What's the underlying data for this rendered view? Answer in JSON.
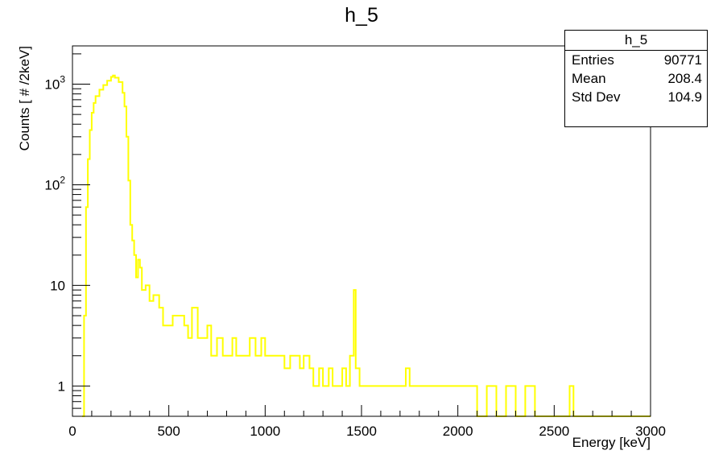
{
  "chart_data": {
    "type": "histogram",
    "title": "h_5",
    "xlabel": "Energy [keV]",
    "ylabel": "Counts [ # /2keV]",
    "xlim": [
      0,
      3000
    ],
    "ylim": [
      0.5,
      2400
    ],
    "y_scale": "log",
    "grid": false,
    "line_color": "#ffff00",
    "x_ticks": [
      {
        "value": 0,
        "label": "0"
      },
      {
        "value": 500,
        "label": "500"
      },
      {
        "value": 1000,
        "label": "1000"
      },
      {
        "value": 1500,
        "label": "1500"
      },
      {
        "value": 2000,
        "label": "2000"
      },
      {
        "value": 2500,
        "label": "2500"
      },
      {
        "value": 3000,
        "label": "3000"
      }
    ],
    "y_ticks": [
      {
        "value": 1,
        "label": "1"
      },
      {
        "value": 10,
        "label": "10"
      },
      {
        "value": 100,
        "label": "10^2"
      },
      {
        "value": 1000,
        "label": "10^3"
      }
    ],
    "series": [
      {
        "points": [
          [
            50,
            0.5
          ],
          [
            60,
            5
          ],
          [
            70,
            60
          ],
          [
            80,
            180
          ],
          [
            90,
            350
          ],
          [
            100,
            520
          ],
          [
            110,
            650
          ],
          [
            120,
            760
          ],
          [
            140,
            880
          ],
          [
            160,
            980
          ],
          [
            180,
            1080
          ],
          [
            200,
            1180
          ],
          [
            210,
            1220
          ],
          [
            220,
            1160
          ],
          [
            240,
            1050
          ],
          [
            260,
            820
          ],
          [
            270,
            600
          ],
          [
            280,
            300
          ],
          [
            290,
            110
          ],
          [
            300,
            40
          ],
          [
            310,
            28
          ],
          [
            320,
            20
          ],
          [
            330,
            12
          ],
          [
            340,
            18
          ],
          [
            350,
            15
          ],
          [
            360,
            9
          ],
          [
            380,
            10
          ],
          [
            400,
            7
          ],
          [
            420,
            8
          ],
          [
            450,
            6
          ],
          [
            470,
            4
          ],
          [
            500,
            4
          ],
          [
            520,
            5
          ],
          [
            550,
            5
          ],
          [
            580,
            4
          ],
          [
            600,
            3
          ],
          [
            620,
            6
          ],
          [
            650,
            3
          ],
          [
            680,
            3
          ],
          [
            700,
            4
          ],
          [
            720,
            2
          ],
          [
            750,
            3
          ],
          [
            780,
            2
          ],
          [
            800,
            2
          ],
          [
            830,
            3
          ],
          [
            850,
            2
          ],
          [
            870,
            2
          ],
          [
            900,
            2
          ],
          [
            920,
            3
          ],
          [
            950,
            2
          ],
          [
            980,
            3
          ],
          [
            1000,
            2
          ],
          [
            1030,
            2
          ],
          [
            1050,
            2
          ],
          [
            1080,
            2
          ],
          [
            1100,
            1.5
          ],
          [
            1130,
            2
          ],
          [
            1150,
            2
          ],
          [
            1180,
            1.5
          ],
          [
            1200,
            2
          ],
          [
            1230,
            1.5
          ],
          [
            1250,
            1
          ],
          [
            1280,
            1.5
          ],
          [
            1300,
            1
          ],
          [
            1330,
            1.5
          ],
          [
            1350,
            1
          ],
          [
            1380,
            1
          ],
          [
            1400,
            1.5
          ],
          [
            1420,
            1
          ],
          [
            1440,
            2
          ],
          [
            1460,
            9
          ],
          [
            1470,
            1.5
          ],
          [
            1490,
            1
          ],
          [
            1520,
            1
          ],
          [
            1550,
            1
          ],
          [
            1580,
            1
          ],
          [
            1600,
            1
          ],
          [
            1650,
            1
          ],
          [
            1700,
            1
          ],
          [
            1730,
            1.5
          ],
          [
            1750,
            1
          ],
          [
            1800,
            1
          ],
          [
            1850,
            1
          ],
          [
            1900,
            1
          ],
          [
            1950,
            1
          ],
          [
            2000,
            1
          ],
          [
            2050,
            1
          ],
          [
            2100,
            0.5
          ],
          [
            2150,
            1
          ],
          [
            2200,
            0.5
          ],
          [
            2250,
            1
          ],
          [
            2300,
            0.5
          ],
          [
            2350,
            1
          ],
          [
            2400,
            0.5
          ],
          [
            2450,
            0.5
          ],
          [
            2500,
            0.5
          ],
          [
            2550,
            0.5
          ],
          [
            2580,
            1
          ],
          [
            2600,
            0.5
          ],
          [
            2700,
            0.5
          ],
          [
            2800,
            0.5
          ],
          [
            2900,
            0.5
          ],
          [
            3000,
            0.5
          ]
        ]
      }
    ],
    "stats_box": {
      "title": "h_5",
      "entries_label": "Entries",
      "entries_value": "90771",
      "mean_label": "Mean",
      "mean_value": "208.4",
      "stddev_label": "Std Dev",
      "stddev_value": "104.9"
    }
  }
}
